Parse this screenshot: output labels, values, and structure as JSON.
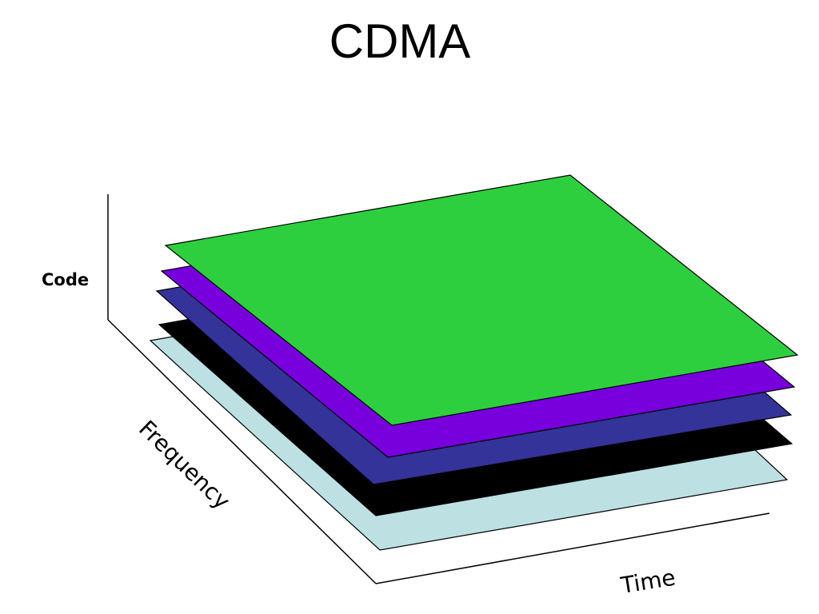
{
  "title": "CDMA",
  "axes": {
    "code": "Code",
    "frequency": "Frequency",
    "time": "Time"
  },
  "layers": [
    {
      "color": "#bde0e3"
    },
    {
      "color": "#000000"
    },
    {
      "color": "#333399"
    },
    {
      "color": "#7700dd"
    },
    {
      "color": "#2ecf3e"
    }
  ]
}
